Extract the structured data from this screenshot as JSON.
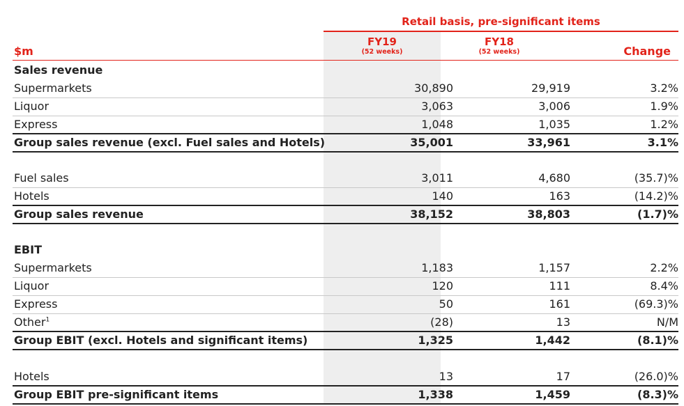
{
  "header": {
    "super_title": "Retail basis, pre-significant items",
    "unit": "$m",
    "col1": {
      "title": "FY19",
      "sub": "(52 weeks)"
    },
    "col2": {
      "title": "FY18",
      "sub": "(52 weeks)"
    },
    "col3": {
      "title": "Change"
    }
  },
  "colors": {
    "accent": "#e2231a",
    "shade": "#eeeeee"
  },
  "rows": [
    {
      "label": "Sales revenue",
      "fy19": "",
      "fy18": "",
      "change": ""
    },
    {
      "label": "Supermarkets",
      "fy19": "30,890",
      "fy18": "29,919",
      "change": "3.2%"
    },
    {
      "label": "Liquor",
      "fy19": "3,063",
      "fy18": "3,006",
      "change": "1.9%"
    },
    {
      "label": "Express",
      "fy19": "1,048",
      "fy18": "1,035",
      "change": "1.2%"
    },
    {
      "label": "Group sales revenue (excl. Fuel sales and Hotels)",
      "fy19": "35,001",
      "fy18": "33,961",
      "change": "3.1%"
    },
    {
      "label": "Fuel sales",
      "fy19": "3,011",
      "fy18": "4,680",
      "change": "(35.7)%"
    },
    {
      "label": "Hotels",
      "fy19": "140",
      "fy18": "163",
      "change": "(14.2)%"
    },
    {
      "label": "Group sales revenue",
      "fy19": "38,152",
      "fy18": "38,803",
      "change": "(1.7)%"
    },
    {
      "label": "EBIT",
      "fy19": "",
      "fy18": "",
      "change": ""
    },
    {
      "label": "Supermarkets",
      "fy19": "1,183",
      "fy18": "1,157",
      "change": "2.2%"
    },
    {
      "label": "Liquor",
      "fy19": "120",
      "fy18": "111",
      "change": "8.4%"
    },
    {
      "label": "Express",
      "fy19": "50",
      "fy18": "161",
      "change": "(69.3)%"
    },
    {
      "label": "Other",
      "footnote": "1",
      "fy19": "(28)",
      "fy18": "13",
      "change": "N/M"
    },
    {
      "label": "Group EBIT (excl. Hotels and significant items)",
      "fy19": "1,325",
      "fy18": "1,442",
      "change": "(8.1)%"
    },
    {
      "label": "Hotels",
      "fy19": "13",
      "fy18": "17",
      "change": "(26.0)%"
    },
    {
      "label": "Group EBIT pre-significant items",
      "fy19": "1,338",
      "fy18": "1,459",
      "change": "(8.3)%"
    }
  ]
}
